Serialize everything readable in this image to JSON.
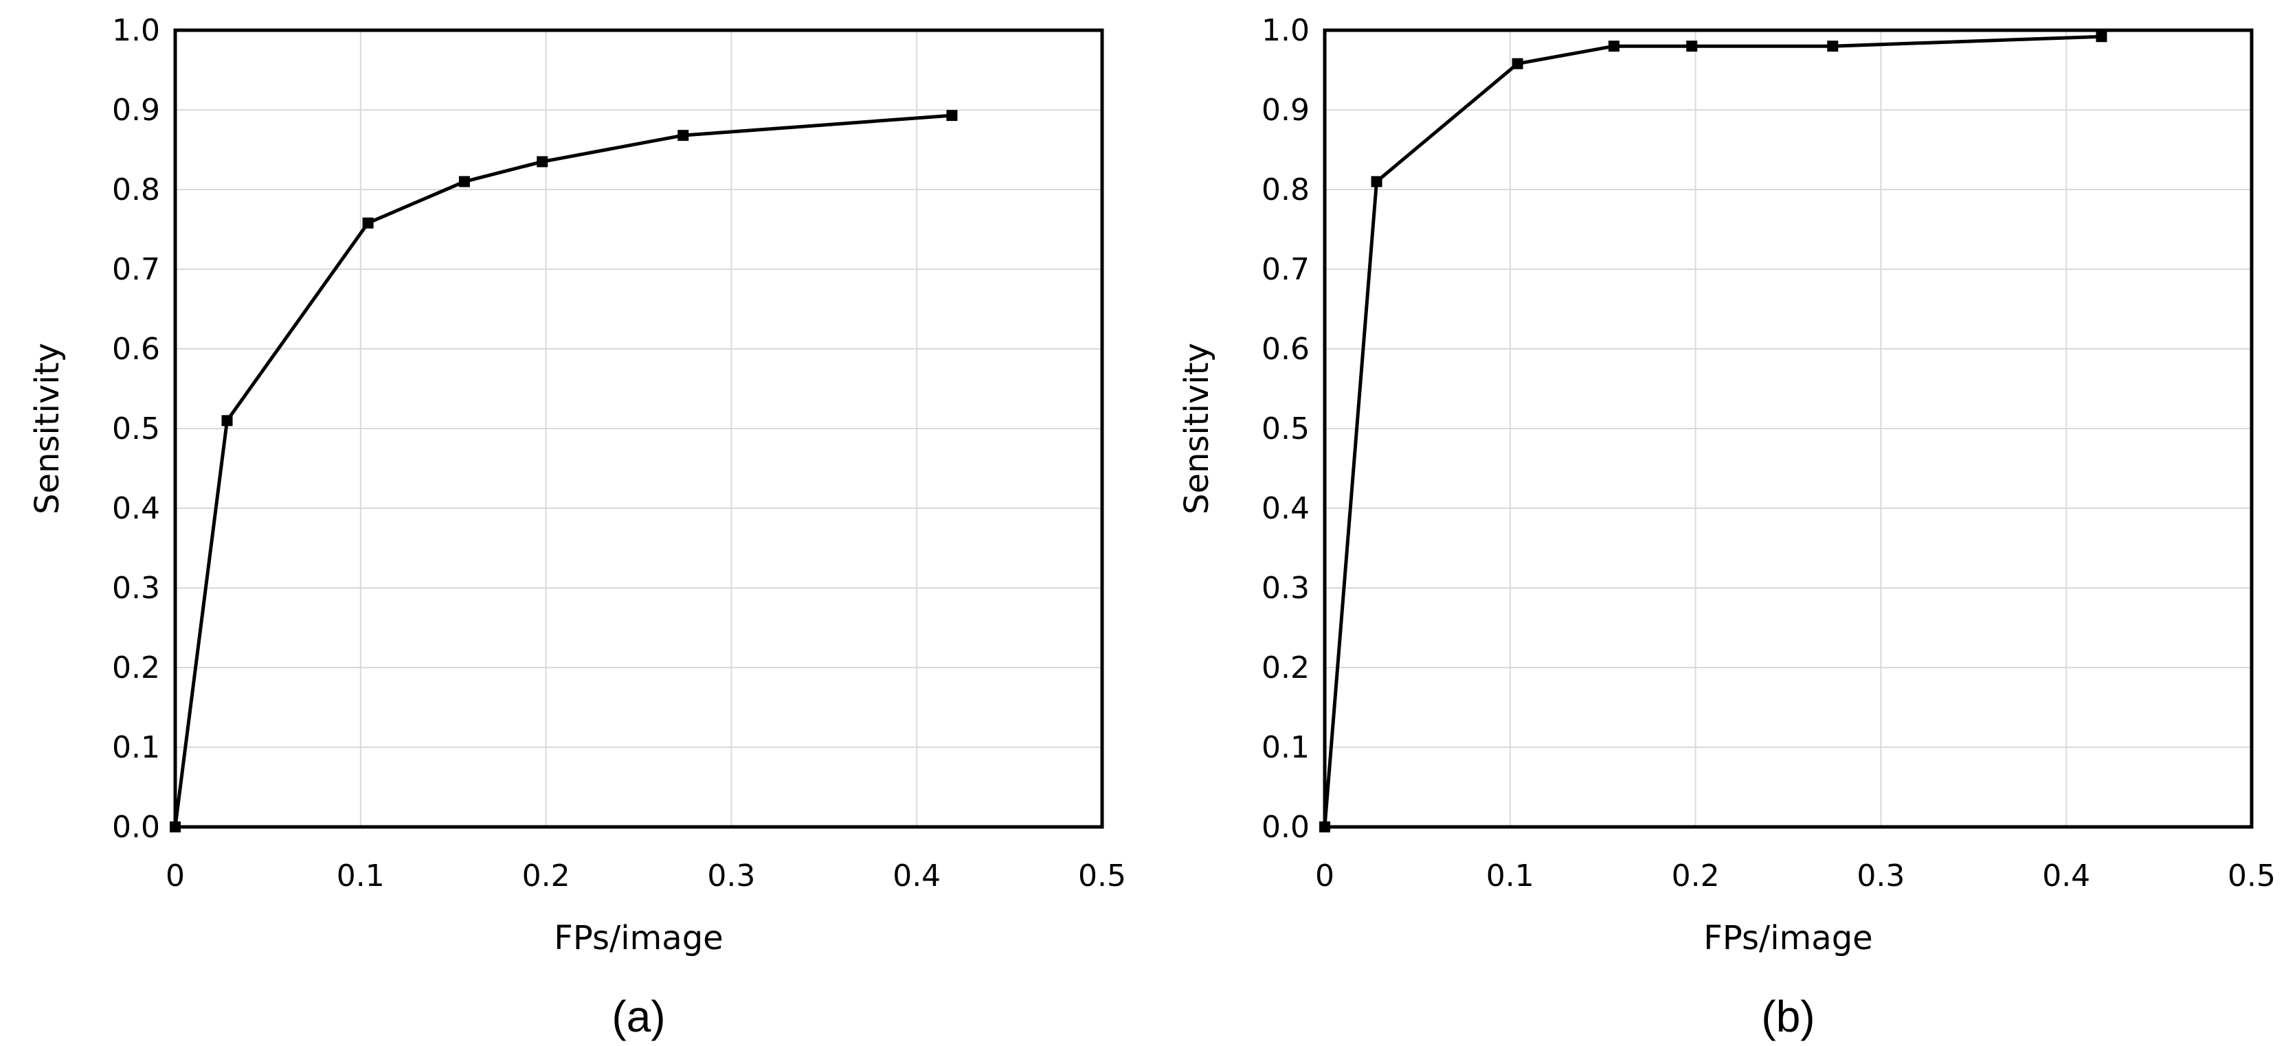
{
  "chart_data": [
    {
      "type": "line",
      "panel_label": "(a)",
      "xlabel": "FPs/image",
      "ylabel": "Sensitivity",
      "xlim": [
        0,
        0.5
      ],
      "ylim": [
        0,
        1.0
      ],
      "xticks": [
        "0",
        "0.1",
        "0.2",
        "0.3",
        "0.4",
        "0.5"
      ],
      "yticks": [
        "0.0",
        "0.1",
        "0.2",
        "0.3",
        "0.4",
        "0.5",
        "0.6",
        "0.7",
        "0.8",
        "0.9",
        "1.0"
      ],
      "grid": true,
      "series": [
        {
          "x": [
            0,
            0.028,
            0.104,
            0.156,
            0.198,
            0.274,
            0.419
          ],
          "y": [
            0.0,
            0.51,
            0.758,
            0.81,
            0.835,
            0.868,
            0.893
          ]
        }
      ]
    },
    {
      "type": "line",
      "panel_label": "(b)",
      "xlabel": "FPs/image",
      "ylabel": "Sensitivity",
      "xlim": [
        0,
        0.5
      ],
      "ylim": [
        0,
        1.0
      ],
      "xticks": [
        "0",
        "0.1",
        "0.2",
        "0.3",
        "0.4",
        "0.5"
      ],
      "yticks": [
        "0.0",
        "0.1",
        "0.2",
        "0.3",
        "0.4",
        "0.5",
        "0.6",
        "0.7",
        "0.8",
        "0.9",
        "1.0"
      ],
      "grid": true,
      "series": [
        {
          "x": [
            0,
            0.028,
            0.104,
            0.156,
            0.198,
            0.274,
            0.419
          ],
          "y": [
            0.0,
            0.81,
            0.958,
            0.98,
            0.98,
            0.98,
            0.992
          ]
        }
      ]
    }
  ]
}
